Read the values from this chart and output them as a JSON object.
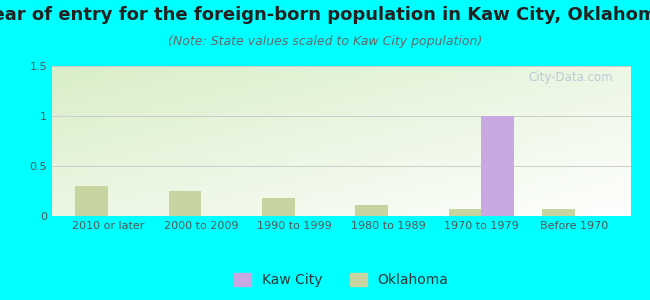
{
  "title": "Year of entry for the foreign-born population in Kaw City, Oklahoma",
  "subtitle": "(Note: State values scaled to Kaw City population)",
  "categories": [
    "2010 or later",
    "2000 to 2009",
    "1990 to 1999",
    "1980 to 1989",
    "1970 to 1979",
    "Before 1970"
  ],
  "kaw_city_values": [
    0,
    0,
    0,
    0,
    1.0,
    0
  ],
  "oklahoma_values": [
    0.3,
    0.25,
    0.18,
    0.11,
    0.07,
    0.07
  ],
  "kaw_city_color": "#c8a8e0",
  "oklahoma_color": "#c8d4a0",
  "background_color": "#00ffff",
  "ylim": [
    0,
    1.5
  ],
  "yticks": [
    0,
    0.5,
    1,
    1.5
  ],
  "bar_width": 0.35,
  "title_fontsize": 13,
  "subtitle_fontsize": 9,
  "tick_fontsize": 8,
  "legend_fontsize": 10,
  "watermark_text": "City-Data.com",
  "watermark_color": "#b8ccd4",
  "grid_color": "#cccccc"
}
